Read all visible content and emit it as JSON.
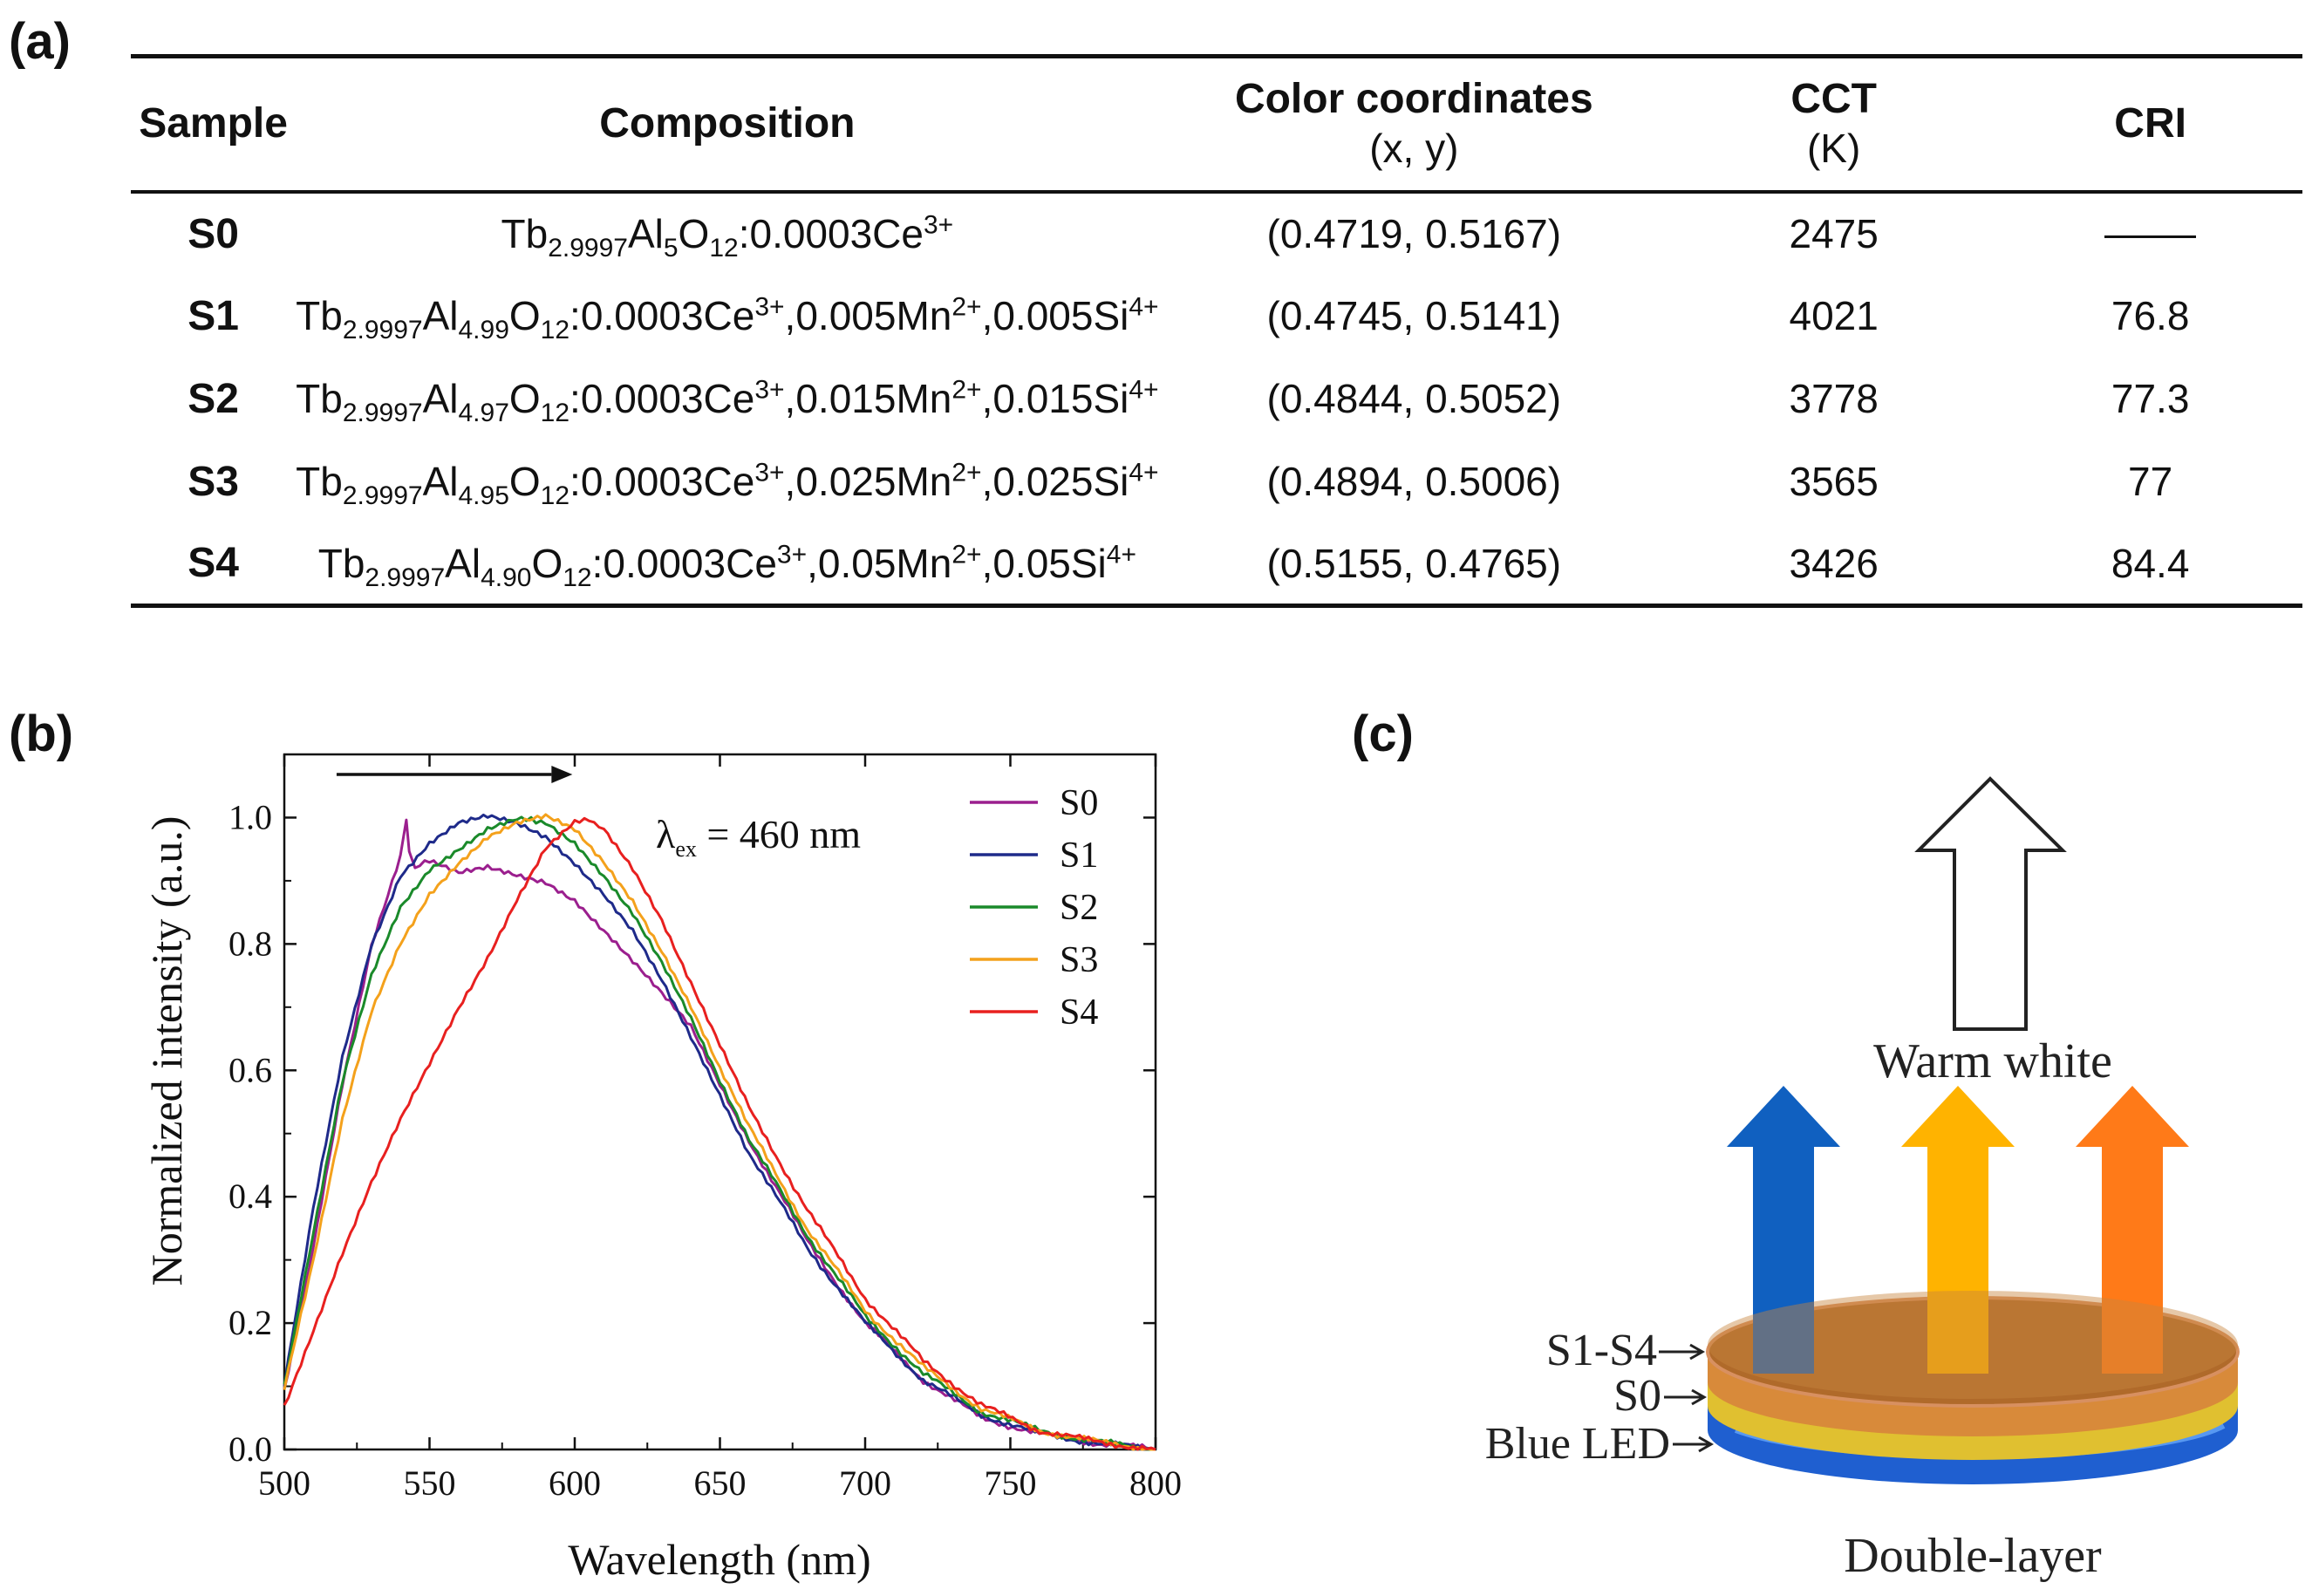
{
  "panels": {
    "a": "(a)",
    "b": "(b)",
    "c": "(c)"
  },
  "table": {
    "headers": {
      "sample": "Sample",
      "composition": "Composition",
      "color_title": "Color coordinates",
      "color_sub": "(x, y)",
      "cct_title": "CCT",
      "cct_sub": "(K)",
      "cri": "CRI"
    },
    "rows": [
      {
        "sample": "S0",
        "composition": "Tb2.9997Al5O12:0.0003Ce3+",
        "coords": "(0.4719, 0.5167)",
        "cct": "2475",
        "cri": "——"
      },
      {
        "sample": "S1",
        "composition": "Tb2.9997Al4.99O12:0.0003Ce3+,0.005Mn2+,0.005Si4+",
        "coords": "(0.4745, 0.5141)",
        "cct": "4021",
        "cri": "76.8"
      },
      {
        "sample": "S2",
        "composition": "Tb2.9997Al4.97O12:0.0003Ce3+,0.015Mn2+,0.015Si4+",
        "coords": "(0.4844, 0.5052)",
        "cct": "3778",
        "cri": "77.3"
      },
      {
        "sample": "S3",
        "composition": "Tb2.9997Al4.95O12:0.0003Ce3+,0.025Mn2+,0.025Si4+",
        "coords": "(0.4894, 0.5006)",
        "cct": "3565",
        "cri": "77"
      },
      {
        "sample": "S4",
        "composition": "Tb2.9997Al4.90O12:0.0003Ce3+,0.05Mn2+,0.05Si4+",
        "coords": "(0.5155, 0.4765)",
        "cct": "3426",
        "cri": "84.4"
      }
    ]
  },
  "chart_data": {
    "type": "line",
    "title": "",
    "xlabel": "Wavelength (nm)",
    "ylabel": "Normalized intensity (a.u.)",
    "xlim": [
      500,
      800
    ],
    "ylim": [
      0.0,
      1.1
    ],
    "x_ticks": [
      "500",
      "550",
      "600",
      "650",
      "700",
      "750",
      "800"
    ],
    "y_ticks": [
      "0.0",
      "0.2",
      "0.4",
      "0.6",
      "0.8",
      "1.0"
    ],
    "annotation": {
      "symbol": "λ",
      "sub": "ex",
      "text": " = 460 nm"
    },
    "legend_position": "top-right",
    "series": [
      {
        "name": "S0",
        "color": "#9b1f8e",
        "x": [
          500,
          510,
          520,
          530,
          540,
          542,
          543,
          545,
          550,
          560,
          570,
          580,
          590,
          600,
          610,
          620,
          630,
          640,
          650,
          660,
          680,
          700,
          720,
          740,
          760,
          780,
          800
        ],
        "y": [
          0.09,
          0.32,
          0.58,
          0.8,
          0.94,
          1.0,
          0.95,
          0.92,
          0.93,
          0.91,
          0.92,
          0.91,
          0.9,
          0.87,
          0.82,
          0.77,
          0.72,
          0.67,
          0.58,
          0.49,
          0.33,
          0.2,
          0.11,
          0.05,
          0.025,
          0.01,
          0.0
        ]
      },
      {
        "name": "S1",
        "color": "#1e2a8a",
        "x": [
          500,
          510,
          520,
          530,
          540,
          550,
          560,
          570,
          580,
          590,
          600,
          610,
          620,
          630,
          640,
          650,
          660,
          680,
          700,
          720,
          740,
          760,
          780,
          800
        ],
        "y": [
          0.1,
          0.38,
          0.62,
          0.8,
          0.91,
          0.96,
          0.99,
          1.0,
          0.99,
          0.97,
          0.93,
          0.88,
          0.82,
          0.74,
          0.65,
          0.56,
          0.47,
          0.32,
          0.2,
          0.11,
          0.055,
          0.025,
          0.01,
          0.0
        ]
      },
      {
        "name": "S2",
        "color": "#1a8a2a",
        "x": [
          500,
          510,
          520,
          530,
          540,
          550,
          560,
          570,
          580,
          585,
          590,
          600,
          610,
          620,
          630,
          640,
          650,
          660,
          680,
          700,
          720,
          740,
          760,
          780,
          800
        ],
        "y": [
          0.1,
          0.34,
          0.58,
          0.75,
          0.86,
          0.92,
          0.95,
          0.98,
          0.995,
          1.0,
          0.99,
          0.96,
          0.91,
          0.85,
          0.77,
          0.68,
          0.58,
          0.49,
          0.34,
          0.21,
          0.12,
          0.06,
          0.03,
          0.012,
          0.0
        ]
      },
      {
        "name": "S3",
        "color": "#f4a11b",
        "x": [
          500,
          510,
          520,
          530,
          540,
          550,
          560,
          570,
          580,
          590,
          600,
          610,
          620,
          630,
          640,
          650,
          660,
          680,
          700,
          720,
          740,
          760,
          780,
          800
        ],
        "y": [
          0.1,
          0.3,
          0.52,
          0.69,
          0.8,
          0.88,
          0.93,
          0.97,
          0.99,
          1.0,
          0.98,
          0.93,
          0.87,
          0.79,
          0.7,
          0.6,
          0.51,
          0.35,
          0.22,
          0.13,
          0.065,
          0.03,
          0.012,
          0.0
        ]
      },
      {
        "name": "S4",
        "color": "#e8201f",
        "x": [
          500,
          510,
          520,
          530,
          540,
          550,
          560,
          570,
          580,
          590,
          600,
          605,
          610,
          620,
          630,
          640,
          650,
          660,
          680,
          700,
          720,
          740,
          760,
          780,
          800
        ],
        "y": [
          0.07,
          0.19,
          0.31,
          0.42,
          0.52,
          0.61,
          0.7,
          0.78,
          0.87,
          0.95,
          0.99,
          1.0,
          0.98,
          0.92,
          0.84,
          0.74,
          0.64,
          0.54,
          0.38,
          0.24,
          0.14,
          0.07,
          0.03,
          0.012,
          0.0
        ]
      }
    ]
  },
  "diagram": {
    "warm_white": "Warm white",
    "layer_s1s4": "S1-S4",
    "layer_s0": "S0",
    "layer_led": "Blue LED",
    "caption": "Double-layer",
    "colors": {
      "blue_arrow": "#1060c0",
      "yellow_arrow": "#ffb300",
      "orange_arrow": "#ff7a18",
      "led": "#1f5fd0",
      "s0_layer": "#e0c030",
      "top_layer": "#b06a2a"
    }
  }
}
